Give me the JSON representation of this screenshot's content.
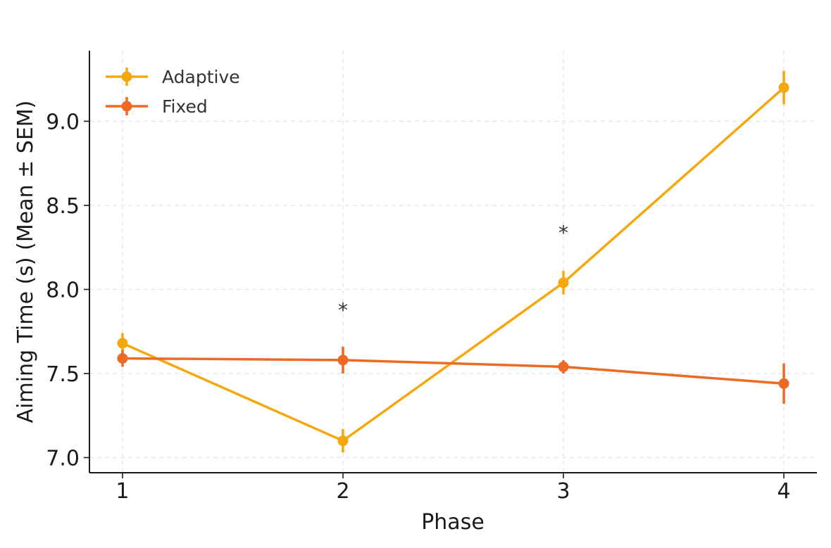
{
  "chart_data": {
    "type": "line",
    "title": "",
    "xlabel": "Phase",
    "ylabel": "Aiming Time (s) (Mean ± SEM)",
    "x": [
      1,
      2,
      3,
      4
    ],
    "x_tick_labels": [
      "1",
      "2",
      "3",
      "4"
    ],
    "xlim": [
      0.85,
      4.15
    ],
    "ylim": [
      6.91,
      9.42
    ],
    "y_ticks": [
      7.0,
      7.5,
      8.0,
      8.5,
      9.0
    ],
    "y_tick_labels": [
      "7.0",
      "7.5",
      "8.0",
      "8.5",
      "9.0"
    ],
    "grid": true,
    "legend_position": "top-left",
    "series": [
      {
        "name": "Adaptive",
        "color": "#f5a80e",
        "values": [
          7.68,
          7.1,
          8.04,
          9.2
        ],
        "sem": [
          0.06,
          0.07,
          0.07,
          0.1
        ]
      },
      {
        "name": "Fixed",
        "color": "#ee6a24",
        "values": [
          7.59,
          7.58,
          7.54,
          7.44
        ],
        "sem": [
          0.05,
          0.08,
          0.04,
          0.12
        ]
      }
    ],
    "annotations": [
      {
        "x": 2,
        "y": 7.92,
        "text": "*"
      },
      {
        "x": 3,
        "y": 8.38,
        "text": "*"
      },
      {
        "x": 4,
        "y": 9.95,
        "text": "***"
      }
    ]
  }
}
